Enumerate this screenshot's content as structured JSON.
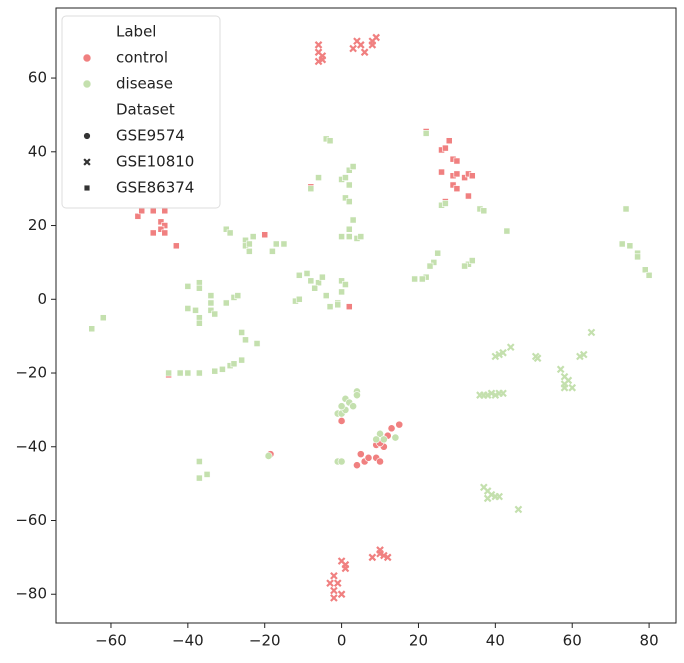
{
  "chart_data": {
    "type": "scatter",
    "xlim": [
      -74.3,
      87.0
    ],
    "ylim": [
      -87.8,
      79.0
    ],
    "xticks": [
      {
        "value": -60,
        "label": "−60"
      },
      {
        "value": -40,
        "label": "−40"
      },
      {
        "value": -20,
        "label": "−20"
      },
      0,
      20,
      40,
      60,
      80
    ],
    "yticks": [
      {
        "value": -80,
        "label": "−80"
      },
      {
        "value": -60,
        "label": "−60"
      },
      {
        "value": -40,
        "label": "−40"
      },
      {
        "value": -20,
        "label": "−20"
      },
      0,
      20,
      40,
      60
    ],
    "legend": {
      "corner": "upper left",
      "hue_title": "Label",
      "hues": [
        {
          "name": "control",
          "color": "#f08080"
        },
        {
          "name": "disease",
          "color": "#c4e0ae"
        }
      ],
      "style_title": "Dataset",
      "styles": [
        {
          "name": "GSE9574",
          "marker": "circle"
        },
        {
          "name": "GSE10810",
          "marker": "x"
        },
        {
          "name": "GSE86374",
          "marker": "square"
        }
      ]
    },
    "series": [
      {
        "hue": 0,
        "style": 0,
        "x": [
          -18.5,
          0,
          4,
          5,
          6,
          7,
          9,
          9,
          10,
          11,
          12,
          13,
          15,
          10,
          -0.5
        ],
        "y": [
          -42,
          -33,
          -45,
          -42,
          -44,
          -43,
          -39.5,
          -43,
          -44,
          -40,
          -37,
          -35,
          -34,
          -39,
          -44
        ]
      },
      {
        "hue": 1,
        "style": 0,
        "x": [
          -19,
          -1,
          0,
          -1,
          0,
          1,
          1,
          2,
          3,
          4,
          4,
          0,
          10,
          11,
          14,
          9
        ],
        "y": [
          -42.5,
          -44,
          -44,
          -31,
          -31,
          -30,
          -27,
          -28,
          -29,
          -25,
          -26,
          -29,
          -36.5,
          -38,
          -37.5,
          -38
        ]
      },
      {
        "hue": 0,
        "style": 1,
        "x": [
          -6,
          -6,
          -5,
          -6,
          -5,
          3,
          4,
          5,
          6,
          8,
          9,
          8,
          -3,
          -2,
          -1,
          -2,
          -2,
          0,
          0,
          1,
          1,
          8,
          10,
          10,
          11,
          12
        ],
        "y": [
          69,
          67,
          66,
          64.5,
          65,
          68,
          70,
          69,
          67,
          70,
          71,
          69,
          -77,
          -75,
          -77,
          -79,
          -81,
          -80,
          -71,
          -73,
          -72,
          -70,
          -68,
          -69,
          -69.5,
          -70
        ]
      },
      {
        "hue": 1,
        "style": 1,
        "x": [
          36,
          37,
          38,
          39,
          40,
          41,
          42,
          40,
          41,
          42,
          44,
          50.5,
          51,
          57,
          58,
          58,
          59,
          58,
          60,
          62,
          63,
          65,
          37,
          38,
          38,
          39,
          40,
          41,
          46
        ],
        "y": [
          -26,
          -26,
          -26,
          -25.5,
          -26,
          -25.5,
          -25.5,
          -15.5,
          -15,
          -14.5,
          -13,
          -15.5,
          -16,
          -19,
          -21,
          -23,
          -22,
          -24,
          -24,
          -15.5,
          -15,
          -9,
          -51,
          -52,
          -54,
          -53,
          -53.5,
          -53.5,
          -57
        ]
      },
      {
        "hue": 0,
        "style": 2,
        "x": [
          -53,
          -52,
          -49,
          -47,
          -46,
          -47,
          -46,
          -49,
          -46,
          -43,
          -20,
          -8,
          2,
          -45,
          22,
          26,
          27,
          28,
          26,
          29,
          30,
          29,
          30,
          32,
          33,
          33,
          27,
          29,
          30,
          34
        ],
        "y": [
          22.5,
          24,
          24,
          21,
          20,
          19,
          18,
          18,
          24,
          14.5,
          17.5,
          30.5,
          -2,
          -20.5,
          45.5,
          40.5,
          41,
          43,
          34.5,
          38,
          37.5,
          33.5,
          34,
          33,
          34,
          28,
          26.5,
          31,
          30,
          33.5
        ]
      },
      {
        "hue": 1,
        "style": 2,
        "x": [
          -65,
          -62,
          -45,
          -42,
          -40,
          -37,
          -33,
          -31,
          -29,
          -28,
          -26,
          -26,
          -25,
          -22,
          -37,
          -37,
          -35,
          -40,
          -37,
          -37,
          -40,
          -38,
          -37,
          -37,
          -34,
          -34,
          -33,
          -34,
          -30,
          -28,
          -27,
          -30,
          -29,
          -25,
          -25,
          -24,
          -24,
          -23,
          -17,
          -18,
          -15,
          -12,
          -11,
          -9,
          -11,
          -8,
          -6,
          -7,
          -5,
          -4,
          -3,
          -1,
          0,
          0,
          1,
          -6,
          -8,
          -1,
          0,
          1,
          2,
          1,
          2,
          3,
          2,
          3,
          4,
          2,
          2,
          5,
          -4,
          -3,
          0,
          22,
          25,
          24,
          23,
          22,
          21,
          19,
          33,
          34,
          32,
          26,
          27,
          36,
          37,
          43,
          73,
          75,
          77,
          77,
          79,
          80,
          74
        ],
        "y": [
          -8,
          -5,
          -20,
          -20,
          -20,
          -20,
          -19.5,
          -19,
          -18,
          -17.5,
          -16.5,
          -9,
          -11,
          -12,
          -44,
          -48.5,
          -47.5,
          3.5,
          4.5,
          3,
          -2.5,
          -3,
          -5,
          -6.5,
          -1,
          -3,
          -4,
          1,
          -1,
          0.5,
          1,
          19,
          18,
          16,
          14.5,
          13,
          15,
          17,
          15,
          13,
          15,
          -0.5,
          0,
          7,
          6.5,
          5,
          4.5,
          3,
          6,
          1,
          -2,
          -1,
          2,
          5,
          4,
          33,
          30,
          -1.5,
          32.5,
          33,
          31,
          27.5,
          26.5,
          21.5,
          35,
          36,
          16.5,
          19,
          17,
          17,
          43.5,
          43,
          17,
          45,
          12.5,
          10,
          9,
          6,
          5.5,
          5.5,
          9.5,
          10.5,
          9,
          25.5,
          26,
          24.5,
          24,
          18.5,
          15,
          14.5,
          12.5,
          11.5,
          8,
          6.5,
          24.5
        ]
      }
    ]
  }
}
